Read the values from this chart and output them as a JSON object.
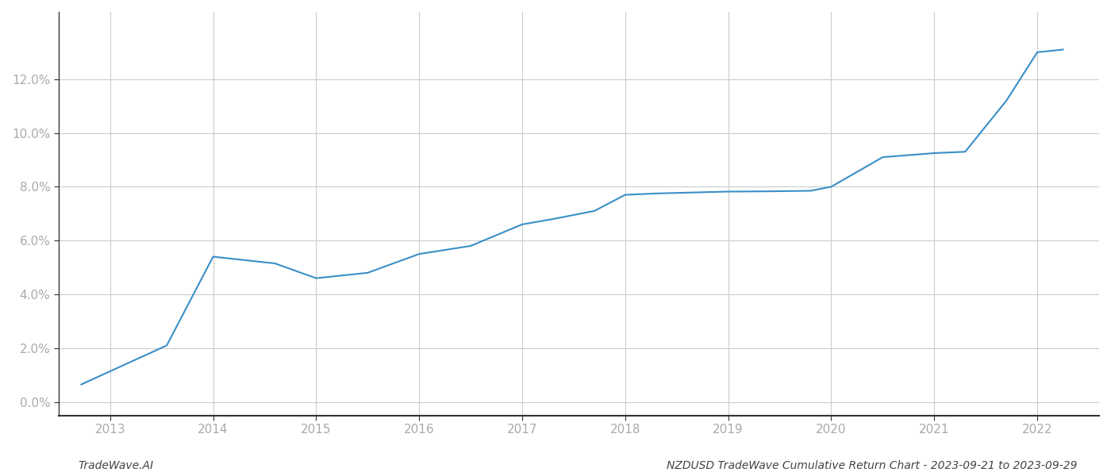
{
  "years": [
    2012.72,
    2013.55,
    2014.0,
    2014.6,
    2015.0,
    2015.5,
    2016.0,
    2016.5,
    2017.0,
    2017.3,
    2017.7,
    2018.0,
    2018.3,
    2018.6,
    2019.0,
    2019.4,
    2019.8,
    2020.0,
    2020.5,
    2021.0,
    2021.3,
    2021.7,
    2022.0,
    2022.25
  ],
  "values": [
    0.65,
    2.1,
    5.4,
    5.15,
    4.6,
    4.8,
    5.5,
    5.8,
    6.6,
    6.8,
    7.1,
    7.7,
    7.75,
    7.78,
    7.82,
    7.83,
    7.85,
    8.0,
    9.1,
    9.25,
    9.3,
    11.2,
    13.0,
    13.1
  ],
  "line_color": "#3a8fc7",
  "line_width": 1.5,
  "background_color": "#ffffff",
  "grid_color": "#cccccc",
  "title": "NZDUSD TradeWave Cumulative Return Chart - 2023-09-21 to 2023-09-29",
  "watermark": "TradeWave.AI",
  "xlim": [
    2012.5,
    2022.6
  ],
  "ylim": [
    -0.5,
    14.5
  ],
  "xticks": [
    2013,
    2014,
    2015,
    2016,
    2017,
    2018,
    2019,
    2020,
    2021,
    2022
  ],
  "ytick_values": [
    0,
    2,
    4,
    6,
    8,
    10,
    12
  ],
  "ytick_labels": [
    "0.0%",
    "2.0%",
    "4.0%",
    "6.0%",
    "8.0%",
    "10.0%",
    "12.0%"
  ],
  "tick_label_color": "#aaaaaa",
  "title_fontsize": 10,
  "watermark_fontsize": 10,
  "spine_color": "#333333"
}
